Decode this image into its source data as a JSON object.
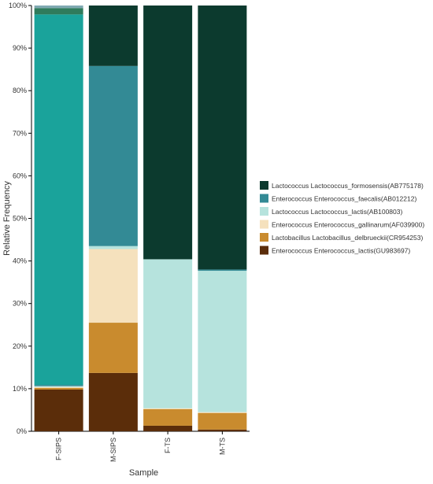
{
  "chart_data": {
    "type": "bar",
    "stacked": true,
    "xlabel": "Sample",
    "ylabel": "Relative Frequency",
    "ylim": [
      0,
      100
    ],
    "y_ticks": [
      "0%",
      "10%",
      "20%",
      "30%",
      "40%",
      "50%",
      "60%",
      "70%",
      "80%",
      "90%",
      "100%"
    ],
    "categories": [
      "F-SIPS",
      "M-SIPS",
      "F-TS",
      "M-TS"
    ],
    "legend_position": "right",
    "series": [
      {
        "name": "Enterococcus Enterococcus_lactis(GU983697)",
        "color": "#5b2d0a",
        "values": [
          9.8,
          13.7,
          1.3,
          0.4
        ]
      },
      {
        "name": "Lactobacillus Lactobacillus_delbrueckii(CR954253)",
        "color": "#c98b2e",
        "values": [
          0.4,
          11.8,
          3.9,
          3.9
        ]
      },
      {
        "name": "Enterococcus Enterococcus_gallinarum(AF039900)",
        "color": "#f5e1bd",
        "values": [
          0.2,
          17.3,
          0.2,
          0.2
        ]
      },
      {
        "name": "Lactococcus Lactococcus_lactis(AB100803)",
        "color": "#b6e3dd",
        "values": [
          0.2,
          0.7,
          35.0,
          33.2
        ]
      },
      {
        "name": "Enterococcus Enterococcus_faecalis(AB012212)",
        "color": "#338a95",
        "values": [
          0.3,
          42.3,
          0.0,
          0.3
        ]
      },
      {
        "name": "Lactococcus Lactococcus_formosensis(AB775178)",
        "color": "#0c3a2e",
        "values": [
          0.0,
          14.2,
          59.6,
          62.0
        ]
      },
      {
        "name": "",
        "color": "#1aa39b",
        "values": [
          87.0,
          0.0,
          0.0,
          0.0
        ]
      },
      {
        "name": "",
        "color": "#2f7b5c",
        "values": [
          1.5,
          0.0,
          0.0,
          0.0
        ]
      },
      {
        "name": "",
        "color": "#7fa9b2",
        "values": [
          0.6,
          0.0,
          0.0,
          0.0
        ]
      }
    ]
  }
}
